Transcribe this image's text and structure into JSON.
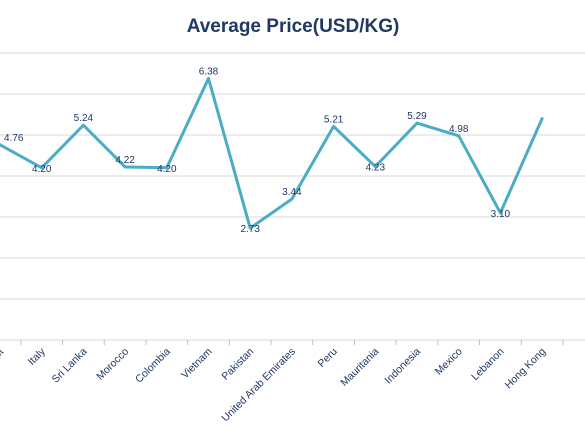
{
  "chart_data": {
    "type": "line",
    "title": "Average Price(USD/KG)",
    "xlabel": "",
    "ylabel": "",
    "categories": [
      "Egypt",
      "Italy",
      "Sri Lanka",
      "Morocco",
      "Colombia",
      "Vietnam",
      "Pakistan",
      "United Arab Emirates",
      "Peru",
      "Mauritania",
      "Indonesia",
      "Mexico",
      "Lebanon",
      "Hong Kong"
    ],
    "series": [
      {
        "values": [
          4.76,
          4.2,
          5.24,
          4.22,
          4.2,
          6.38,
          2.73,
          3.44,
          5.21,
          4.23,
          5.29,
          4.98,
          3.1,
          5.4
        ]
      }
    ],
    "data_labels": [
      "4.76",
      "4.20",
      "5.24",
      "4.22",
      "4.20",
      "6.38",
      "2.73",
      "3.44",
      "5.21",
      "4.23",
      "5.29",
      "4.98",
      "3.10",
      ""
    ],
    "ylim": [
      0,
      7
    ],
    "grid": true,
    "legend": "none",
    "colors": {
      "line": "#4bacc6",
      "text": "#1f3864",
      "grid": "#d9d9d9"
    }
  }
}
